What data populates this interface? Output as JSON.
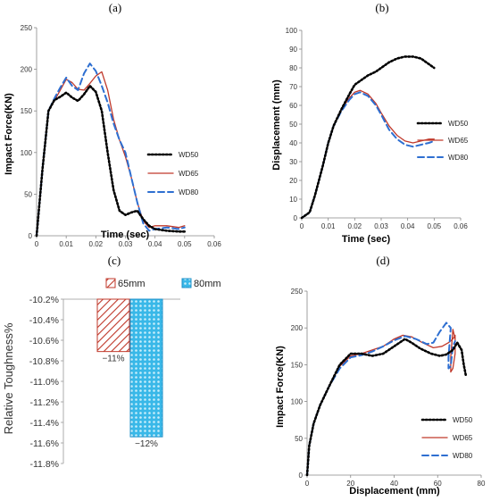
{
  "colors": {
    "WD50": "#000000",
    "WD65": "#c0392b",
    "WD80": "#2e6fd1",
    "bar65_hatch": "#c0392b",
    "bar80_fill": "#39b8e8"
  },
  "chart_data": [
    {
      "panel": "(a)",
      "type": "line",
      "xlabel": "Time (sec)",
      "ylabel": "Impact Force(KN)",
      "xlim": [
        0,
        0.06
      ],
      "ylim": [
        0,
        250
      ],
      "xticks": [
        "0",
        "0.01",
        "0.02",
        "0.03",
        "0.04",
        "0.05",
        "0.06"
      ],
      "yticks": [
        "0",
        "50",
        "100",
        "150",
        "200",
        "250"
      ],
      "legend": [
        "WD50",
        "WD65",
        "WD80"
      ],
      "series": [
        {
          "name": "WD50",
          "style": "dotted",
          "points": [
            [
              0,
              0
            ],
            [
              0.002,
              80
            ],
            [
              0.004,
              150
            ],
            [
              0.006,
              163
            ],
            [
              0.008,
              167
            ],
            [
              0.01,
              172
            ],
            [
              0.012,
              166
            ],
            [
              0.014,
              162
            ],
            [
              0.016,
              170
            ],
            [
              0.018,
              180
            ],
            [
              0.02,
              173
            ],
            [
              0.022,
              150
            ],
            [
              0.024,
              100
            ],
            [
              0.026,
              55
            ],
            [
              0.028,
              30
            ],
            [
              0.03,
              25
            ],
            [
              0.032,
              28
            ],
            [
              0.034,
              30
            ],
            [
              0.036,
              20
            ],
            [
              0.038,
              12
            ],
            [
              0.04,
              8
            ],
            [
              0.044,
              6
            ],
            [
              0.048,
              5
            ],
            [
              0.05,
              5
            ]
          ]
        },
        {
          "name": "WD65",
          "style": "solid",
          "points": [
            [
              0,
              0
            ],
            [
              0.002,
              80
            ],
            [
              0.004,
              150
            ],
            [
              0.006,
              162
            ],
            [
              0.008,
              175
            ],
            [
              0.01,
              188
            ],
            [
              0.012,
              184
            ],
            [
              0.014,
              176
            ],
            [
              0.016,
              175
            ],
            [
              0.018,
              183
            ],
            [
              0.02,
              192
            ],
            [
              0.022,
              197
            ],
            [
              0.024,
              175
            ],
            [
              0.026,
              140
            ],
            [
              0.028,
              115
            ],
            [
              0.03,
              95
            ],
            [
              0.032,
              70
            ],
            [
              0.034,
              40
            ],
            [
              0.036,
              18
            ],
            [
              0.038,
              10
            ],
            [
              0.04,
              12
            ],
            [
              0.044,
              12
            ],
            [
              0.048,
              10
            ],
            [
              0.05,
              12
            ]
          ]
        },
        {
          "name": "WD80",
          "style": "dashed",
          "points": [
            [
              0,
              0
            ],
            [
              0.002,
              80
            ],
            [
              0.004,
              150
            ],
            [
              0.006,
              165
            ],
            [
              0.008,
              178
            ],
            [
              0.01,
              190
            ],
            [
              0.012,
              180
            ],
            [
              0.014,
              175
            ],
            [
              0.016,
              195
            ],
            [
              0.018,
              207
            ],
            [
              0.02,
              198
            ],
            [
              0.022,
              180
            ],
            [
              0.024,
              160
            ],
            [
              0.026,
              135
            ],
            [
              0.028,
              115
            ],
            [
              0.03,
              100
            ],
            [
              0.032,
              70
            ],
            [
              0.034,
              40
            ],
            [
              0.036,
              15
            ],
            [
              0.038,
              6
            ],
            [
              0.04,
              8
            ],
            [
              0.044,
              10
            ],
            [
              0.048,
              8
            ],
            [
              0.05,
              10
            ]
          ]
        }
      ]
    },
    {
      "panel": "(b)",
      "type": "line",
      "xlabel": "Time (sec)",
      "ylabel": "Displacement (mm)",
      "xlim": [
        0,
        0.06
      ],
      "ylim": [
        0,
        100
      ],
      "xticks": [
        "0",
        "0.01",
        "0.02",
        "0.03",
        "0.04",
        "0.05",
        "0.06"
      ],
      "yticks": [
        "0",
        "10",
        "20",
        "30",
        "40",
        "50",
        "60",
        "70",
        "80",
        "90",
        "100"
      ],
      "legend": [
        "WD50",
        "WD65",
        "WD80"
      ],
      "series": [
        {
          "name": "WD50",
          "style": "dotted",
          "points": [
            [
              0,
              0
            ],
            [
              0.003,
              3
            ],
            [
              0.005,
              12
            ],
            [
              0.008,
              28
            ],
            [
              0.01,
              40
            ],
            [
              0.012,
              49
            ],
            [
              0.015,
              58
            ],
            [
              0.018,
              66
            ],
            [
              0.02,
              71
            ],
            [
              0.022,
              73
            ],
            [
              0.025,
              76
            ],
            [
              0.028,
              78
            ],
            [
              0.03,
              80
            ],
            [
              0.033,
              83
            ],
            [
              0.036,
              85
            ],
            [
              0.039,
              86
            ],
            [
              0.042,
              86
            ],
            [
              0.045,
              85
            ],
            [
              0.048,
              82
            ],
            [
              0.05,
              80
            ]
          ]
        },
        {
          "name": "WD65",
          "style": "solid",
          "points": [
            [
              0,
              0
            ],
            [
              0.003,
              3
            ],
            [
              0.005,
              12
            ],
            [
              0.008,
              28
            ],
            [
              0.01,
              40
            ],
            [
              0.012,
              49
            ],
            [
              0.015,
              58
            ],
            [
              0.018,
              64
            ],
            [
              0.02,
              67
            ],
            [
              0.022,
              68
            ],
            [
              0.025,
              66
            ],
            [
              0.028,
              61
            ],
            [
              0.03,
              56
            ],
            [
              0.033,
              49
            ],
            [
              0.036,
              44
            ],
            [
              0.039,
              41
            ],
            [
              0.042,
              40
            ],
            [
              0.045,
              41
            ],
            [
              0.048,
              42
            ],
            [
              0.05,
              42
            ]
          ]
        },
        {
          "name": "WD80",
          "style": "dashed",
          "points": [
            [
              0,
              0
            ],
            [
              0.003,
              3
            ],
            [
              0.005,
              12
            ],
            [
              0.008,
              28
            ],
            [
              0.01,
              40
            ],
            [
              0.012,
              49
            ],
            [
              0.015,
              57
            ],
            [
              0.018,
              63
            ],
            [
              0.02,
              66
            ],
            [
              0.022,
              67
            ],
            [
              0.025,
              65
            ],
            [
              0.028,
              60
            ],
            [
              0.03,
              55
            ],
            [
              0.033,
              47
            ],
            [
              0.036,
              42
            ],
            [
              0.039,
              39
            ],
            [
              0.042,
              38
            ],
            [
              0.045,
              39
            ],
            [
              0.048,
              40
            ],
            [
              0.05,
              41
            ]
          ]
        }
      ]
    },
    {
      "panel": "(c)",
      "type": "bar",
      "ylabel": "Relative Toughness%",
      "ylim": [
        -11.8,
        -10.2
      ],
      "yticks": [
        "-10.2%",
        "-10.4%",
        "-10.6%",
        "-10.8%",
        "-11.0%",
        "-11.2%",
        "-11.4%",
        "-11.6%",
        "-11.8%"
      ],
      "categories": [
        "65mm",
        "80mm"
      ],
      "values": [
        -10.71,
        -11.54
      ],
      "data_labels": [
        "−11%",
        "−12%"
      ]
    },
    {
      "panel": "(d)",
      "type": "line",
      "xlabel": "Displacement (mm)",
      "ylabel": "Impact Force(KN)",
      "xlim": [
        0,
        80
      ],
      "ylim": [
        0,
        250
      ],
      "xticks": [
        "0",
        "20",
        "40",
        "60",
        "80"
      ],
      "yticks": [
        "0",
        "50",
        "100",
        "150",
        "200",
        "250"
      ],
      "legend": [
        "WD50",
        "WD65",
        "WD80"
      ],
      "series": [
        {
          "name": "WD50",
          "style": "dotted",
          "points": [
            [
              0,
              0
            ],
            [
              1,
              40
            ],
            [
              3,
              70
            ],
            [
              6,
              95
            ],
            [
              10,
              120
            ],
            [
              15,
              150
            ],
            [
              20,
              165
            ],
            [
              25,
              165
            ],
            [
              30,
              162
            ],
            [
              35,
              165
            ],
            [
              40,
              175
            ],
            [
              45,
              185
            ],
            [
              48,
              180
            ],
            [
              52,
              172
            ],
            [
              57,
              165
            ],
            [
              61,
              162
            ],
            [
              64,
              164
            ],
            [
              67,
              170
            ],
            [
              69,
              180
            ],
            [
              71,
              170
            ],
            [
              72,
              150
            ],
            [
              73,
              135
            ]
          ]
        },
        {
          "name": "WD65",
          "style": "solid",
          "points": [
            [
              0,
              0
            ],
            [
              1,
              40
            ],
            [
              3,
              70
            ],
            [
              6,
              95
            ],
            [
              10,
              120
            ],
            [
              15,
              148
            ],
            [
              20,
              162
            ],
            [
              25,
              165
            ],
            [
              30,
              170
            ],
            [
              35,
              175
            ],
            [
              40,
              185
            ],
            [
              44,
              190
            ],
            [
              48,
              188
            ],
            [
              53,
              180
            ],
            [
              58,
              173
            ],
            [
              62,
              175
            ],
            [
              65,
              180
            ],
            [
              67,
              185
            ],
            [
              68,
              190
            ],
            [
              68,
              165
            ],
            [
              67,
              145
            ],
            [
              66,
              140
            ],
            [
              66,
              160
            ],
            [
              67,
              198
            ],
            [
              68,
              185
            ],
            [
              68,
              180
            ]
          ]
        },
        {
          "name": "WD80",
          "style": "dashed",
          "points": [
            [
              0,
              0
            ],
            [
              1,
              40
            ],
            [
              3,
              70
            ],
            [
              6,
              95
            ],
            [
              10,
              120
            ],
            [
              15,
              145
            ],
            [
              20,
              160
            ],
            [
              25,
              163
            ],
            [
              30,
              168
            ],
            [
              35,
              175
            ],
            [
              40,
              183
            ],
            [
              45,
              189
            ],
            [
              50,
              185
            ],
            [
              55,
              178
            ],
            [
              58,
              180
            ],
            [
              61,
              195
            ],
            [
              64,
              207
            ],
            [
              66,
              200
            ],
            [
              65,
              160
            ],
            [
              65,
              145
            ],
            [
              66,
              148
            ],
            [
              67,
              175
            ],
            [
              68,
              182
            ]
          ]
        }
      ]
    }
  ]
}
